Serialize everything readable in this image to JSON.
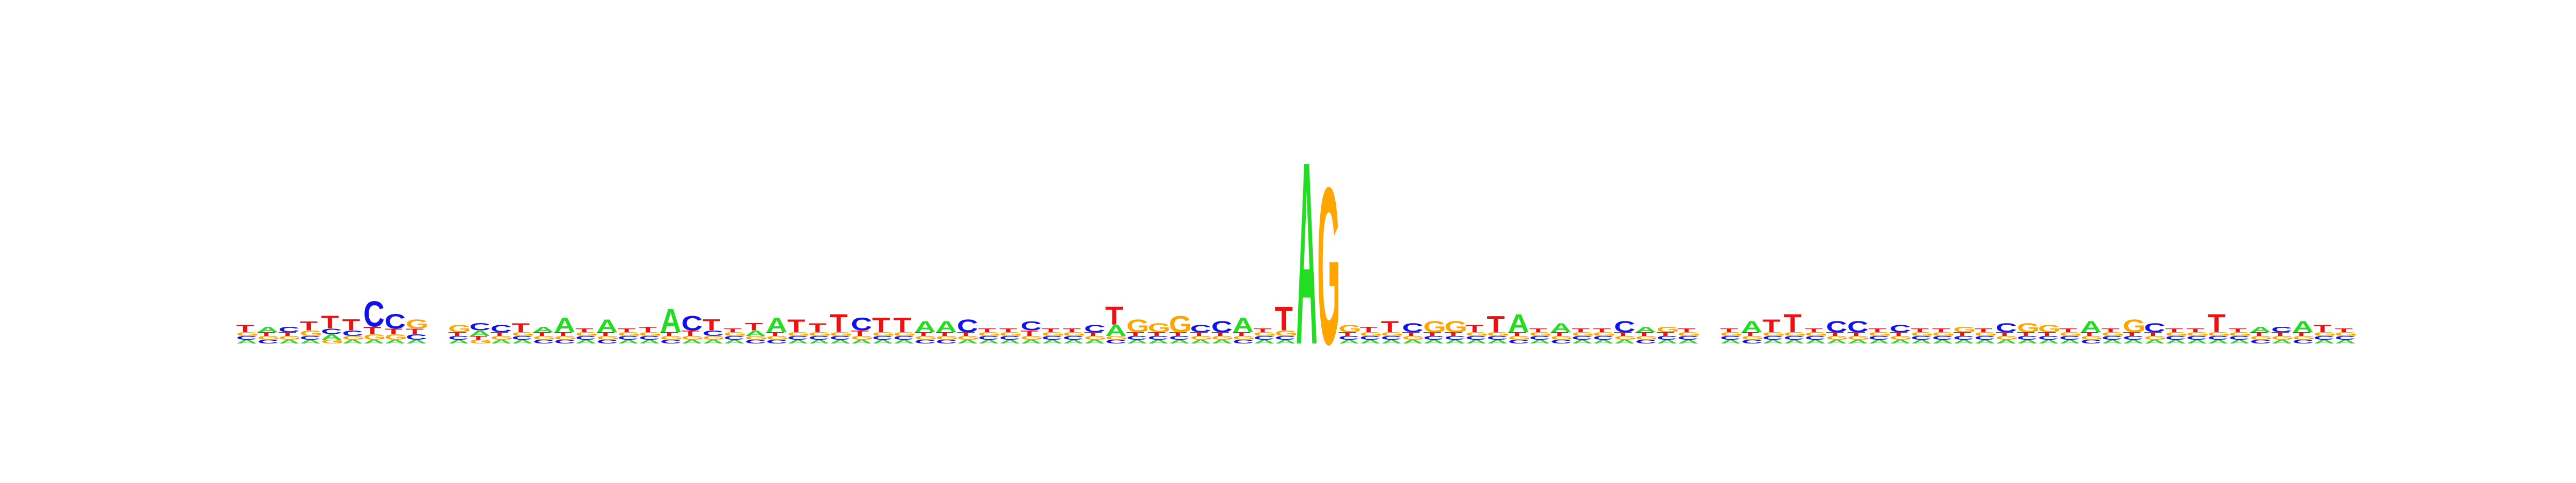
{
  "colors": {
    "A": "#22dd22",
    "C": "#1111ee",
    "G": "#ffa500",
    "T": "#ee1111"
  },
  "chart_data": {
    "type": "sequence-logo",
    "title": "",
    "xlabel": "",
    "ylabel": "",
    "ylim": [
      0,
      2
    ],
    "alphabet": [
      "A",
      "C",
      "G",
      "T"
    ],
    "positions": [
      {
        "A": 0.02,
        "C": 0.02,
        "G": 0.02,
        "T": 0.04
      },
      {
        "A": 0.03,
        "C": 0.02,
        "G": 0.02,
        "T": 0.02
      },
      {
        "A": 0.02,
        "C": 0.03,
        "G": 0.02,
        "T": 0.02
      },
      {
        "A": 0.02,
        "C": 0.02,
        "G": 0.03,
        "T": 0.05
      },
      {
        "A": 0.03,
        "C": 0.03,
        "G": 0.02,
        "T": 0.07
      },
      {
        "A": 0.02,
        "C": 0.03,
        "G": 0.02,
        "T": 0.06
      },
      {
        "A": 0.02,
        "C": 0.14,
        "G": 0.03,
        "T": 0.04
      },
      {
        "A": 0.02,
        "C": 0.08,
        "G": 0.03,
        "T": 0.03
      },
      {
        "A": 0.02,
        "C": 0.03,
        "G": 0.05,
        "T": 0.03
      },
      {
        "A": 0.0,
        "C": 0.0,
        "G": 0.0,
        "T": 0.0
      },
      {
        "A": 0.02,
        "C": 0.02,
        "G": 0.04,
        "T": 0.02
      },
      {
        "A": 0.03,
        "C": 0.04,
        "G": 0.02,
        "T": 0.02
      },
      {
        "A": 0.02,
        "C": 0.04,
        "G": 0.02,
        "T": 0.02
      },
      {
        "A": 0.02,
        "C": 0.02,
        "G": 0.02,
        "T": 0.05
      },
      {
        "A": 0.03,
        "C": 0.02,
        "G": 0.02,
        "T": 0.02
      },
      {
        "A": 0.08,
        "C": 0.02,
        "G": 0.02,
        "T": 0.02
      },
      {
        "A": 0.02,
        "C": 0.02,
        "G": 0.02,
        "T": 0.02
      },
      {
        "A": 0.07,
        "C": 0.02,
        "G": 0.02,
        "T": 0.02
      },
      {
        "A": 0.02,
        "C": 0.02,
        "G": 0.02,
        "T": 0.02
      },
      {
        "A": 0.02,
        "C": 0.02,
        "G": 0.02,
        "T": 0.03
      },
      {
        "A": 0.13,
        "C": 0.02,
        "G": 0.02,
        "T": 0.02
      },
      {
        "A": 0.02,
        "C": 0.08,
        "G": 0.02,
        "T": 0.03
      },
      {
        "A": 0.02,
        "C": 0.03,
        "G": 0.02,
        "T": 0.06
      },
      {
        "A": 0.02,
        "C": 0.02,
        "G": 0.02,
        "T": 0.02
      },
      {
        "A": 0.03,
        "C": 0.02,
        "G": 0.02,
        "T": 0.04
      },
      {
        "A": 0.08,
        "C": 0.02,
        "G": 0.02,
        "T": 0.02
      },
      {
        "A": 0.02,
        "C": 0.02,
        "G": 0.02,
        "T": 0.07
      },
      {
        "A": 0.02,
        "C": 0.02,
        "G": 0.02,
        "T": 0.05
      },
      {
        "A": 0.02,
        "C": 0.02,
        "G": 0.02,
        "T": 0.1
      },
      {
        "A": 0.02,
        "C": 0.07,
        "G": 0.02,
        "T": 0.03
      },
      {
        "A": 0.02,
        "C": 0.02,
        "G": 0.02,
        "T": 0.08
      },
      {
        "A": 0.02,
        "C": 0.02,
        "G": 0.02,
        "T": 0.08
      },
      {
        "A": 0.06,
        "C": 0.02,
        "G": 0.02,
        "T": 0.02
      },
      {
        "A": 0.06,
        "C": 0.02,
        "G": 0.02,
        "T": 0.02
      },
      {
        "A": 0.02,
        "C": 0.07,
        "G": 0.02,
        "T": 0.02
      },
      {
        "A": 0.02,
        "C": 0.02,
        "G": 0.02,
        "T": 0.02
      },
      {
        "A": 0.02,
        "C": 0.02,
        "G": 0.02,
        "T": 0.02
      },
      {
        "A": 0.02,
        "C": 0.05,
        "G": 0.02,
        "T": 0.03
      },
      {
        "A": 0.02,
        "C": 0.02,
        "G": 0.02,
        "T": 0.02
      },
      {
        "A": 0.02,
        "C": 0.02,
        "G": 0.02,
        "T": 0.02
      },
      {
        "A": 0.02,
        "C": 0.04,
        "G": 0.02,
        "T": 0.02
      },
      {
        "A": 0.06,
        "C": 0.02,
        "G": 0.02,
        "T": 0.1
      },
      {
        "A": 0.02,
        "C": 0.02,
        "G": 0.07,
        "T": 0.02
      },
      {
        "A": 0.02,
        "C": 0.02,
        "G": 0.05,
        "T": 0.02
      },
      {
        "A": 0.02,
        "C": 0.02,
        "G": 0.09,
        "T": 0.02
      },
      {
        "A": 0.02,
        "C": 0.04,
        "G": 0.02,
        "T": 0.02
      },
      {
        "A": 0.02,
        "C": 0.06,
        "G": 0.02,
        "T": 0.02
      },
      {
        "A": 0.08,
        "C": 0.02,
        "G": 0.02,
        "T": 0.02
      },
      {
        "A": 0.02,
        "C": 0.02,
        "G": 0.02,
        "T": 0.02
      },
      {
        "A": 0.02,
        "C": 0.02,
        "G": 0.03,
        "T": 0.13
      },
      {
        "A": 1.0,
        "C": 0.0,
        "G": 0.0,
        "T": 0.0
      },
      {
        "A": 0.0,
        "C": 0.0,
        "G": 0.86,
        "T": 0.0
      },
      {
        "A": 0.02,
        "C": 0.02,
        "G": 0.04,
        "T": 0.02
      },
      {
        "A": 0.02,
        "C": 0.02,
        "G": 0.02,
        "T": 0.03
      },
      {
        "A": 0.02,
        "C": 0.02,
        "G": 0.02,
        "T": 0.06
      },
      {
        "A": 0.02,
        "C": 0.05,
        "G": 0.02,
        "T": 0.02
      },
      {
        "A": 0.02,
        "C": 0.02,
        "G": 0.06,
        "T": 0.02
      },
      {
        "A": 0.02,
        "C": 0.02,
        "G": 0.06,
        "T": 0.02
      },
      {
        "A": 0.02,
        "C": 0.02,
        "G": 0.02,
        "T": 0.04
      },
      {
        "A": 0.02,
        "C": 0.02,
        "G": 0.02,
        "T": 0.09
      },
      {
        "A": 0.1,
        "C": 0.02,
        "G": 0.02,
        "T": 0.02
      },
      {
        "A": 0.02,
        "C": 0.02,
        "G": 0.02,
        "T": 0.02
      },
      {
        "A": 0.05,
        "C": 0.02,
        "G": 0.02,
        "T": 0.02
      },
      {
        "A": 0.02,
        "C": 0.02,
        "G": 0.02,
        "T": 0.02
      },
      {
        "A": 0.02,
        "C": 0.02,
        "G": 0.02,
        "T": 0.02
      },
      {
        "A": 0.02,
        "C": 0.06,
        "G": 0.02,
        "T": 0.02
      },
      {
        "A": 0.03,
        "C": 0.02,
        "G": 0.02,
        "T": 0.02
      },
      {
        "A": 0.02,
        "C": 0.02,
        "G": 0.03,
        "T": 0.02
      },
      {
        "A": 0.02,
        "C": 0.02,
        "G": 0.02,
        "T": 0.02
      },
      {
        "A": 0.0,
        "C": 0.0,
        "G": 0.0,
        "T": 0.0
      },
      {
        "A": 0.02,
        "C": 0.02,
        "G": 0.02,
        "T": 0.02
      },
      {
        "A": 0.06,
        "C": 0.02,
        "G": 0.02,
        "T": 0.02
      },
      {
        "A": 0.02,
        "C": 0.02,
        "G": 0.02,
        "T": 0.07
      },
      {
        "A": 0.02,
        "C": 0.02,
        "G": 0.02,
        "T": 0.1
      },
      {
        "A": 0.02,
        "C": 0.02,
        "G": 0.02,
        "T": 0.02
      },
      {
        "A": 0.02,
        "C": 0.06,
        "G": 0.02,
        "T": 0.02
      },
      {
        "A": 0.02,
        "C": 0.06,
        "G": 0.02,
        "T": 0.02
      },
      {
        "A": 0.02,
        "C": 0.02,
        "G": 0.02,
        "T": 0.02
      },
      {
        "A": 0.02,
        "C": 0.04,
        "G": 0.02,
        "T": 0.02
      },
      {
        "A": 0.02,
        "C": 0.02,
        "G": 0.02,
        "T": 0.02
      },
      {
        "A": 0.02,
        "C": 0.02,
        "G": 0.02,
        "T": 0.02
      },
      {
        "A": 0.02,
        "C": 0.02,
        "G": 0.03,
        "T": 0.02
      },
      {
        "A": 0.02,
        "C": 0.02,
        "G": 0.02,
        "T": 0.02
      },
      {
        "A": 0.02,
        "C": 0.05,
        "G": 0.02,
        "T": 0.02
      },
      {
        "A": 0.02,
        "C": 0.02,
        "G": 0.05,
        "T": 0.02
      },
      {
        "A": 0.02,
        "C": 0.02,
        "G": 0.04,
        "T": 0.02
      },
      {
        "A": 0.02,
        "C": 0.02,
        "G": 0.02,
        "T": 0.02
      },
      {
        "A": 0.06,
        "C": 0.02,
        "G": 0.02,
        "T": 0.02
      },
      {
        "A": 0.02,
        "C": 0.02,
        "G": 0.02,
        "T": 0.02
      },
      {
        "A": 0.02,
        "C": 0.02,
        "G": 0.07,
        "T": 0.02
      },
      {
        "A": 0.02,
        "C": 0.05,
        "G": 0.02,
        "T": 0.02
      },
      {
        "A": 0.02,
        "C": 0.02,
        "G": 0.02,
        "T": 0.02
      },
      {
        "A": 0.02,
        "C": 0.02,
        "G": 0.02,
        "T": 0.02
      },
      {
        "A": 0.02,
        "C": 0.02,
        "G": 0.02,
        "T": 0.1
      },
      {
        "A": 0.02,
        "C": 0.02,
        "G": 0.02,
        "T": 0.02
      },
      {
        "A": 0.03,
        "C": 0.02,
        "G": 0.02,
        "T": 0.02
      },
      {
        "A": 0.02,
        "C": 0.03,
        "G": 0.02,
        "T": 0.02
      },
      {
        "A": 0.06,
        "C": 0.02,
        "G": 0.02,
        "T": 0.02
      },
      {
        "A": 0.02,
        "C": 0.02,
        "G": 0.02,
        "T": 0.04
      },
      {
        "A": 0.02,
        "C": 0.02,
        "G": 0.02,
        "T": 0.02
      }
    ]
  }
}
